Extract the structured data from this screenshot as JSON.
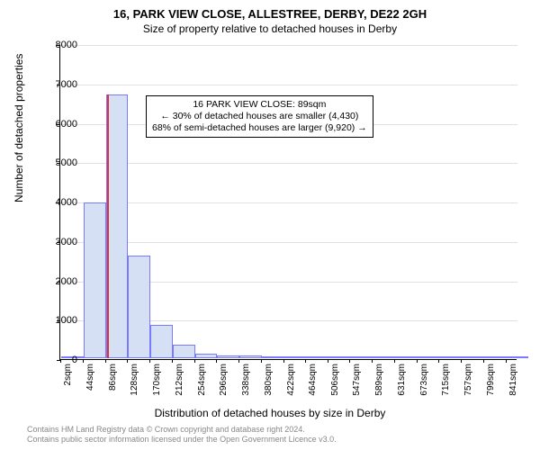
{
  "title_main": "16, PARK VIEW CLOSE, ALLESTREE, DERBY, DE22 2GH",
  "title_sub": "Size of property relative to detached houses in Derby",
  "ylabel": "Number of detached properties",
  "xlabel": "Distribution of detached houses by size in Derby",
  "chart": {
    "type": "histogram",
    "background_color": "#ffffff",
    "grid_color": "#e0e0e0",
    "axis_color": "#000000",
    "bar_fill": "#d6e0f5",
    "bar_border": "#7a7aff",
    "marker_color": "#dd3333",
    "ylim": [
      0,
      8000
    ],
    "ytick_step": 1000,
    "yticks": [
      0,
      1000,
      2000,
      3000,
      4000,
      5000,
      6000,
      7000,
      8000
    ],
    "xlim": [
      0,
      862
    ],
    "xticks": [
      {
        "v": 2,
        "label": "2sqm"
      },
      {
        "v": 44,
        "label": "44sqm"
      },
      {
        "v": 86,
        "label": "86sqm"
      },
      {
        "v": 128,
        "label": "128sqm"
      },
      {
        "v": 170,
        "label": "170sqm"
      },
      {
        "v": 212,
        "label": "212sqm"
      },
      {
        "v": 254,
        "label": "254sqm"
      },
      {
        "v": 296,
        "label": "296sqm"
      },
      {
        "v": 338,
        "label": "338sqm"
      },
      {
        "v": 380,
        "label": "380sqm"
      },
      {
        "v": 422,
        "label": "422sqm"
      },
      {
        "v": 464,
        "label": "464sqm"
      },
      {
        "v": 506,
        "label": "506sqm"
      },
      {
        "v": 547,
        "label": "547sqm"
      },
      {
        "v": 589,
        "label": "589sqm"
      },
      {
        "v": 631,
        "label": "631sqm"
      },
      {
        "v": 673,
        "label": "673sqm"
      },
      {
        "v": 715,
        "label": "715sqm"
      },
      {
        "v": 757,
        "label": "757sqm"
      },
      {
        "v": 799,
        "label": "799sqm"
      },
      {
        "v": 841,
        "label": "841sqm"
      }
    ],
    "bin_width": 42,
    "bins": [
      {
        "x": 2,
        "count": 50
      },
      {
        "x": 44,
        "count": 3950
      },
      {
        "x": 86,
        "count": 6700
      },
      {
        "x": 128,
        "count": 2600
      },
      {
        "x": 170,
        "count": 850
      },
      {
        "x": 212,
        "count": 350
      },
      {
        "x": 254,
        "count": 120
      },
      {
        "x": 296,
        "count": 80
      },
      {
        "x": 338,
        "count": 60
      },
      {
        "x": 380,
        "count": 30
      },
      {
        "x": 422,
        "count": 20
      },
      {
        "x": 464,
        "count": 15
      },
      {
        "x": 506,
        "count": 10
      },
      {
        "x": 547,
        "count": 5
      },
      {
        "x": 589,
        "count": 5
      },
      {
        "x": 631,
        "count": 5
      },
      {
        "x": 673,
        "count": 3
      },
      {
        "x": 715,
        "count": 3
      },
      {
        "x": 757,
        "count": 2
      },
      {
        "x": 799,
        "count": 2
      },
      {
        "x": 841,
        "count": 2
      }
    ],
    "marker_x": 89,
    "marker_height": 6700
  },
  "annotation": {
    "line1": "16 PARK VIEW CLOSE: 89sqm",
    "line2": "← 30% of detached houses are smaller (4,430)",
    "line3": "68% of semi-detached houses are larger (9,920) →"
  },
  "footer": {
    "line1": "Contains HM Land Registry data © Crown copyright and database right 2024.",
    "line2": "Contains public sector information licensed under the Open Government Licence v3.0."
  },
  "fonts": {
    "title_main_size": 13,
    "title_sub_size": 12,
    "axis_label_size": 12,
    "tick_size": 11,
    "xtick_size": 10,
    "annotation_size": 10.5,
    "footer_size": 9,
    "footer_color": "#888888"
  }
}
